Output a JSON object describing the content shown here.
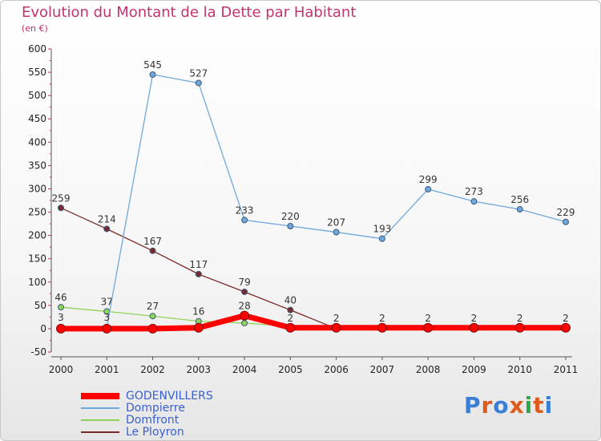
{
  "header": {
    "title": "Evolution du Montant de la Dette par Habitant",
    "unit": "(en €)"
  },
  "brand": {
    "name": "Proxiti",
    "letter_colors": [
      "#3a7fd5",
      "#e05a1c",
      "#3a7fd5",
      "#e05a1c",
      "#2fa84a",
      "#e05a1c",
      "#3a7fd5"
    ]
  },
  "chart_data": {
    "type": "line",
    "title": "Evolution du Montant de la Dette par Habitant",
    "subtitle": "(en €)",
    "xlabel": "",
    "ylabel": "",
    "x": [
      "2000",
      "2001",
      "2002",
      "2003",
      "2004",
      "2005",
      "2006",
      "2007",
      "2008",
      "2009",
      "2010",
      "2011"
    ],
    "ylim": [
      -50,
      600
    ],
    "yticks": [
      -50,
      0,
      50,
      100,
      150,
      200,
      250,
      300,
      350,
      400,
      450,
      500,
      550,
      600
    ],
    "grid": false,
    "legend_position": "bottom-left",
    "series": [
      {
        "name": "Le Ployron",
        "color": "#7a2a2a",
        "values": [
          259,
          214,
          167,
          117,
          79,
          40,
          0,
          0,
          0,
          0,
          0,
          0
        ],
        "labels": [
          "259",
          "214",
          "167",
          "117",
          "79",
          "40",
          "",
          "",
          "",
          "",
          "",
          ""
        ]
      },
      {
        "name": "Domfront",
        "color": "#8ed45a",
        "values": [
          46,
          37,
          27,
          16,
          12,
          5,
          2,
          2,
          2,
          2,
          2,
          2
        ],
        "labels": [
          "46",
          "37",
          "27",
          "16",
          "",
          "",
          "",
          "",
          "",
          "",
          "",
          ""
        ]
      },
      {
        "name": "Dompierre",
        "color": "#6fa8dc",
        "values": [
          3,
          3,
          545,
          527,
          233,
          220,
          207,
          193,
          299,
          273,
          256,
          229
        ],
        "labels": [
          "3",
          "3",
          "545",
          "527",
          "233",
          "220",
          "207",
          "193",
          "299",
          "273",
          "256",
          "229"
        ]
      },
      {
        "name": "GODENVILLERS",
        "color": "#ff0000",
        "values": [
          0,
          0,
          0,
          2,
          28,
          2,
          2,
          2,
          2,
          2,
          2,
          2
        ],
        "labels": [
          "",
          "",
          "",
          "",
          "28",
          "2",
          "2",
          "2",
          "2",
          "2",
          "2",
          "2"
        ]
      }
    ]
  }
}
